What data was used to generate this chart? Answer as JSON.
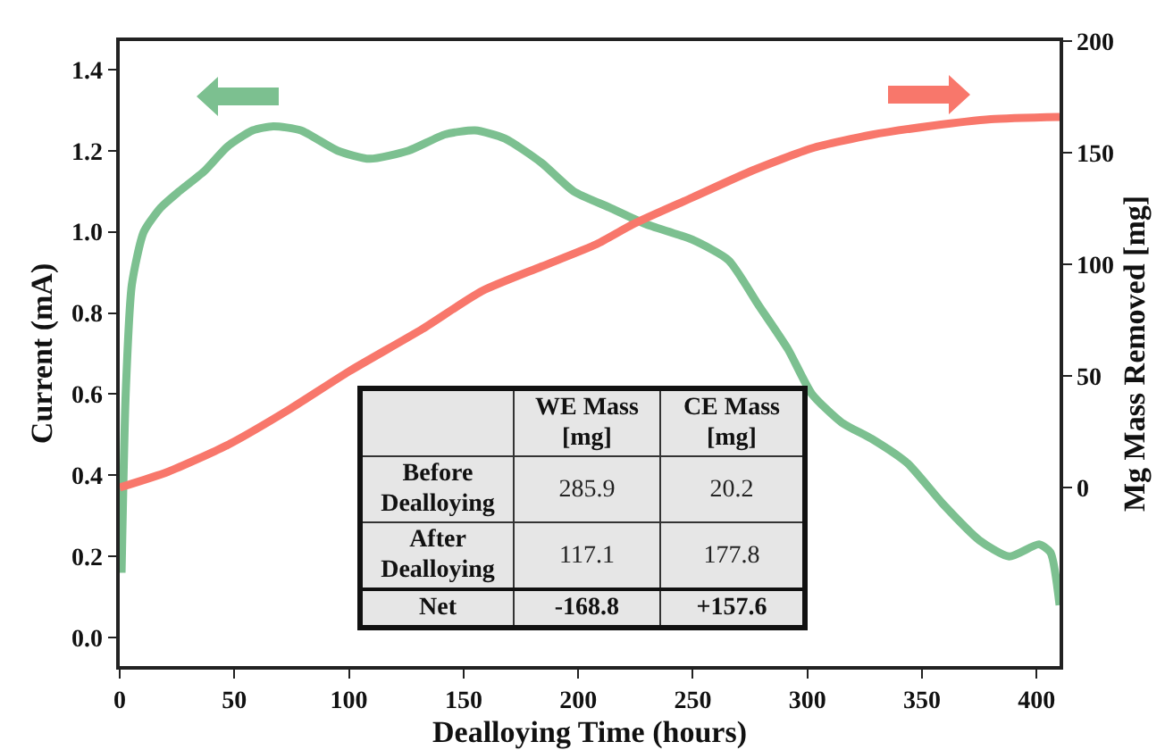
{
  "chart_data": {
    "type": "line",
    "xlabel": "Dealloying Time (hours)",
    "ylabel": "Current (mA)",
    "y2label": "Mg Mass Removed [mg]",
    "xlim": [
      0,
      410
    ],
    "xticks": [
      0,
      50,
      100,
      150,
      200,
      250,
      300,
      350,
      400
    ],
    "ylim": [
      -0.07,
      1.47
    ],
    "yticks": [
      {
        "value": 0,
        "label": "0.0"
      },
      0.2,
      0.4,
      0.6,
      0.8,
      {
        "value": 1,
        "label": "1.0"
      },
      1.2,
      1.4
    ],
    "y2lim": [
      -80,
      200
    ],
    "y2ticks": [
      0,
      50,
      100,
      150,
      200
    ],
    "grid": false,
    "marker": "none",
    "line_style": "solid",
    "series": [
      {
        "color": "#7cc090",
        "x": [
          0.8,
          2.6,
          5.3,
          10.5,
          18,
          26,
          37,
          47,
          58,
          67,
          79,
          95,
          109,
          126,
          142,
          155,
          168,
          184,
          198,
          213.6,
          229,
          250,
          265.6,
          278.6,
          291.6,
          302,
          315,
          328,
          343.6,
          359,
          375,
          388,
          401,
          406,
          410
        ],
        "values": [
          0.16,
          0.6,
          0.87,
          1.0,
          1.06,
          1.1,
          1.15,
          1.21,
          1.25,
          1.26,
          1.25,
          1.2,
          1.18,
          1.2,
          1.24,
          1.25,
          1.23,
          1.17,
          1.1,
          1.06,
          1.02,
          0.98,
          0.93,
          0.82,
          0.71,
          0.6,
          0.53,
          0.49,
          0.43,
          0.33,
          0.24,
          0.2,
          0.23,
          0.21,
          0.08
        ]
      },
      {
        "color": "#f8776b",
        "axis": "y2",
        "x": [
          0,
          21,
          47,
          74,
          100,
          132,
          158,
          184,
          208,
          224,
          250,
          276,
          302,
          328,
          354,
          380,
          410
        ],
        "values": [
          0,
          7,
          19,
          35,
          52,
          71,
          88,
          99,
          109,
          118,
          130,
          142,
          152,
          158,
          162,
          165,
          166
        ]
      }
    ],
    "annotations": [
      "WE Mass [mg]",
      "CE Mass [mg]",
      "Before Dealloying",
      "285.9",
      "20.2",
      "After Dealloying",
      "117.1",
      "177.8",
      "Net",
      "-168.8",
      "+157.6"
    ]
  }
}
